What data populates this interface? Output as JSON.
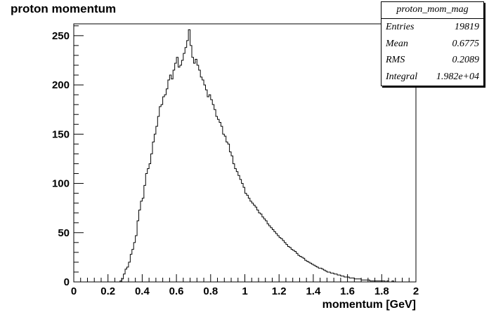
{
  "chart_data": {
    "type": "bar",
    "style": "histogram-step",
    "title": "proton momentum",
    "xlabel": "momentum [GeV]",
    "ylabel": "",
    "xlim": [
      0,
      2
    ],
    "ylim": [
      0,
      262
    ],
    "x_ticks": [
      0,
      0.2,
      0.4,
      0.6,
      0.8,
      1,
      1.2,
      1.4,
      1.6,
      1.8,
      2
    ],
    "x_tick_labels": [
      "0",
      "0.2",
      "0.4",
      "0.6",
      "0.8",
      "1",
      "1.2",
      "1.4",
      "1.6",
      "1.8",
      "2"
    ],
    "y_ticks": [
      0,
      50,
      100,
      150,
      200,
      250
    ],
    "y_tick_labels": [
      "0",
      "50",
      "100",
      "150",
      "200",
      "250"
    ],
    "grid": false,
    "bin_width": 0.01,
    "bin_start": 0.26,
    "values": [
      0,
      1,
      3,
      8,
      13,
      15,
      20,
      28,
      33,
      40,
      47,
      62,
      73,
      82,
      85,
      98,
      110,
      115,
      120,
      130,
      142,
      150,
      158,
      168,
      178,
      180,
      188,
      190,
      196,
      205,
      210,
      206,
      215,
      222,
      228,
      218,
      220,
      225,
      232,
      238,
      245,
      256,
      240,
      228,
      222,
      226,
      220,
      215,
      208,
      205,
      200,
      195,
      188,
      190,
      185,
      180,
      175,
      168,
      165,
      162,
      158,
      150,
      148,
      142,
      140,
      132,
      128,
      120,
      115,
      112,
      108,
      104,
      100,
      96,
      90,
      88,
      85,
      82,
      80,
      78,
      76,
      73,
      70,
      69,
      66,
      64,
      62,
      59,
      57,
      55,
      53,
      51,
      49,
      47,
      45,
      44,
      42,
      40,
      38,
      36,
      35,
      33,
      32,
      31,
      29,
      27,
      26,
      25,
      24,
      22,
      21,
      20,
      19,
      18,
      17,
      16,
      15,
      14,
      14,
      13,
      12,
      11,
      10,
      10,
      9,
      9,
      8,
      8,
      7,
      7,
      6,
      6,
      5,
      5,
      5,
      4,
      4,
      4,
      3,
      3,
      3,
      3,
      2,
      2,
      2,
      2,
      2,
      1,
      1,
      1,
      1,
      1,
      1,
      1,
      1,
      1,
      0,
      1,
      0,
      0,
      1,
      0,
      0,
      0,
      0,
      0,
      0,
      0,
      0,
      0,
      0,
      0,
      0,
      0,
      0
    ],
    "legend_placement": "top-right"
  },
  "stats_box": {
    "name": "proton_mom_mag",
    "rows": [
      {
        "label": "Entries",
        "value": "19819"
      },
      {
        "label": "Mean",
        "value": "0.6775"
      },
      {
        "label": "RMS",
        "value": "0.2089"
      },
      {
        "label": "Integral",
        "value": "1.982e+04"
      }
    ]
  }
}
